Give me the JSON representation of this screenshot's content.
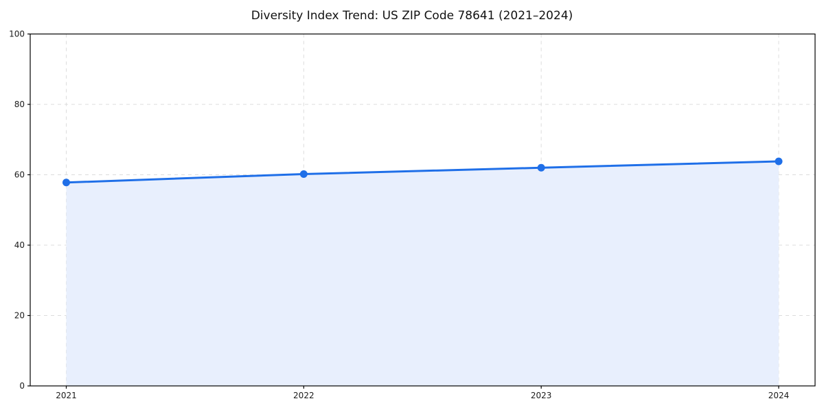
{
  "chart_data": {
    "type": "area",
    "title": "Diversity Index Trend: US ZIP Code 78641 (2021–2024)",
    "x": [
      "2021",
      "2022",
      "2023",
      "2024"
    ],
    "values": [
      57.8,
      60.2,
      62.0,
      63.8
    ],
    "xlabel": "",
    "ylabel": "",
    "ylim": [
      0,
      100
    ],
    "yticks": [
      0,
      20,
      40,
      60,
      80,
      100
    ],
    "grid": true,
    "legend": "none",
    "colors": {
      "line": "#1f6fe8",
      "fill": "#e8effd",
      "gridline": "#dcdcdc",
      "axis": "#000000",
      "tick_label": "#1a1a1a"
    }
  }
}
